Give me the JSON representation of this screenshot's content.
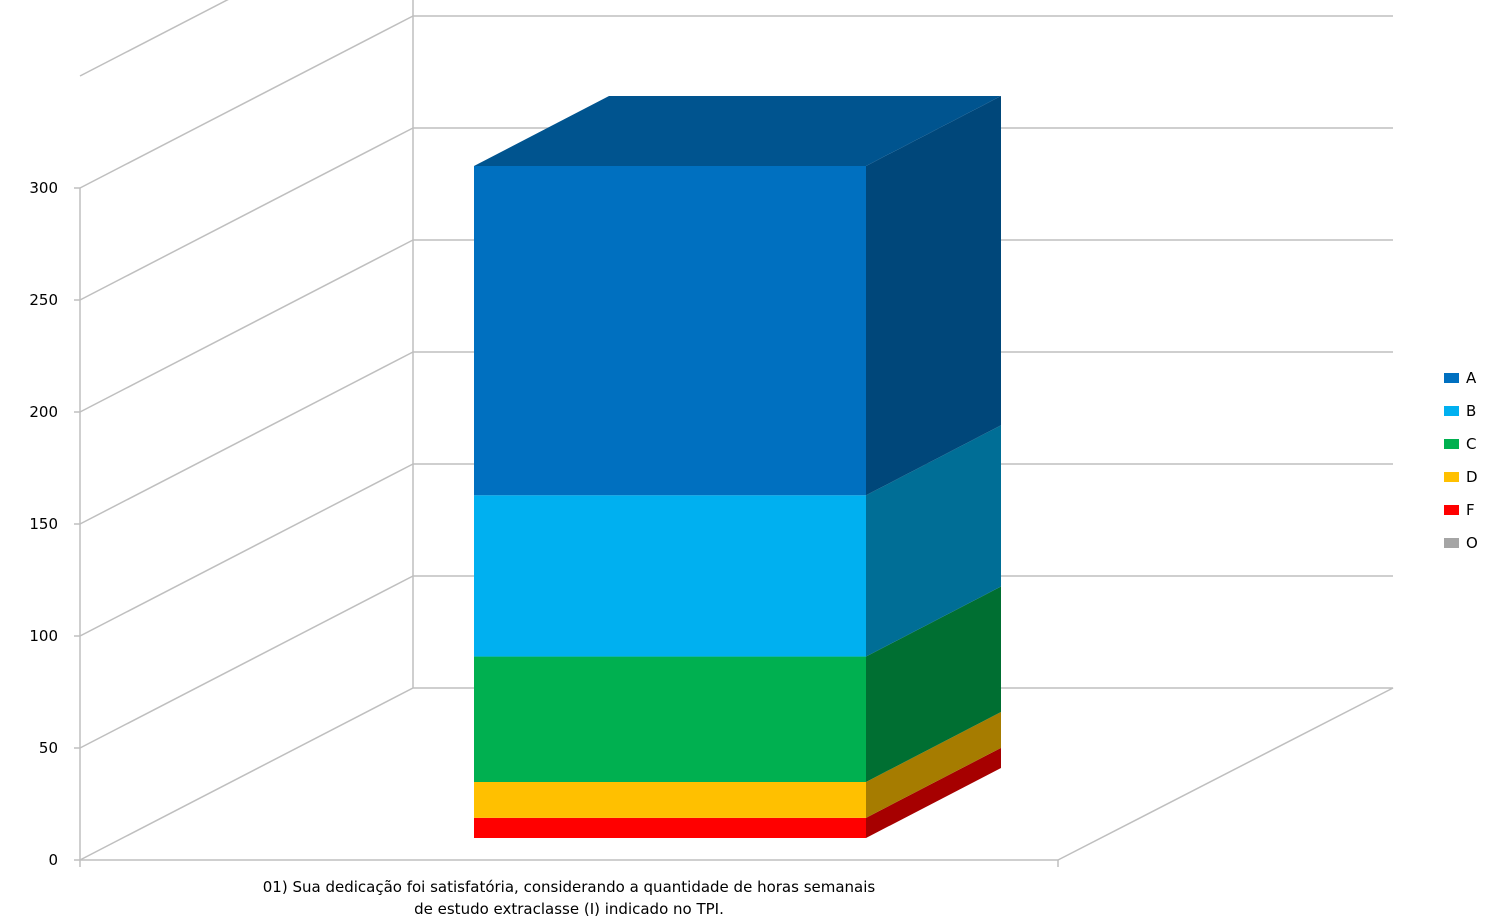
{
  "chart_data": {
    "type": "bar",
    "stacked": true,
    "three_d": true,
    "categories": [
      "01) Sua dedicação foi satisfatória, considerando a quantidade de horas semanais de estudo extraclasse (I) indicado no TPI."
    ],
    "category_label_lines": [
      "01) Sua dedicação foi satisfatória, considerando a quantidade de horas semanais",
      "de estudo extraclasse (I) indicado no TPI."
    ],
    "series": [
      {
        "name": "A",
        "values": [
          147
        ],
        "color": "#0070C0",
        "side_color": "#00477A",
        "top_color": "#00548F"
      },
      {
        "name": "B",
        "values": [
          72
        ],
        "color": "#00B0F0",
        "side_color": "#006E96",
        "top_color": "#0083B3"
      },
      {
        "name": "C",
        "values": [
          56
        ],
        "color": "#00B050",
        "side_color": "#006F32",
        "top_color": "#00833B"
      },
      {
        "name": "D",
        "values": [
          16
        ],
        "color": "#FFC000",
        "side_color": "#A67C00",
        "top_color": "#BF9000"
      },
      {
        "name": "F",
        "values": [
          9
        ],
        "color": "#FF0000",
        "side_color": "#A60000",
        "top_color": "#BF0000"
      },
      {
        "name": "O",
        "values": [
          0
        ],
        "color": "#A5A5A5",
        "side_color": "#6B6B6B",
        "top_color": "#7C7C7C"
      }
    ],
    "y_ticks": [
      "0",
      "50",
      "100",
      "150",
      "200",
      "250",
      "300"
    ],
    "ylim": [
      0,
      300
    ],
    "grid": true,
    "legend": "right",
    "title": "",
    "xlabel": "",
    "ylabel": ""
  }
}
